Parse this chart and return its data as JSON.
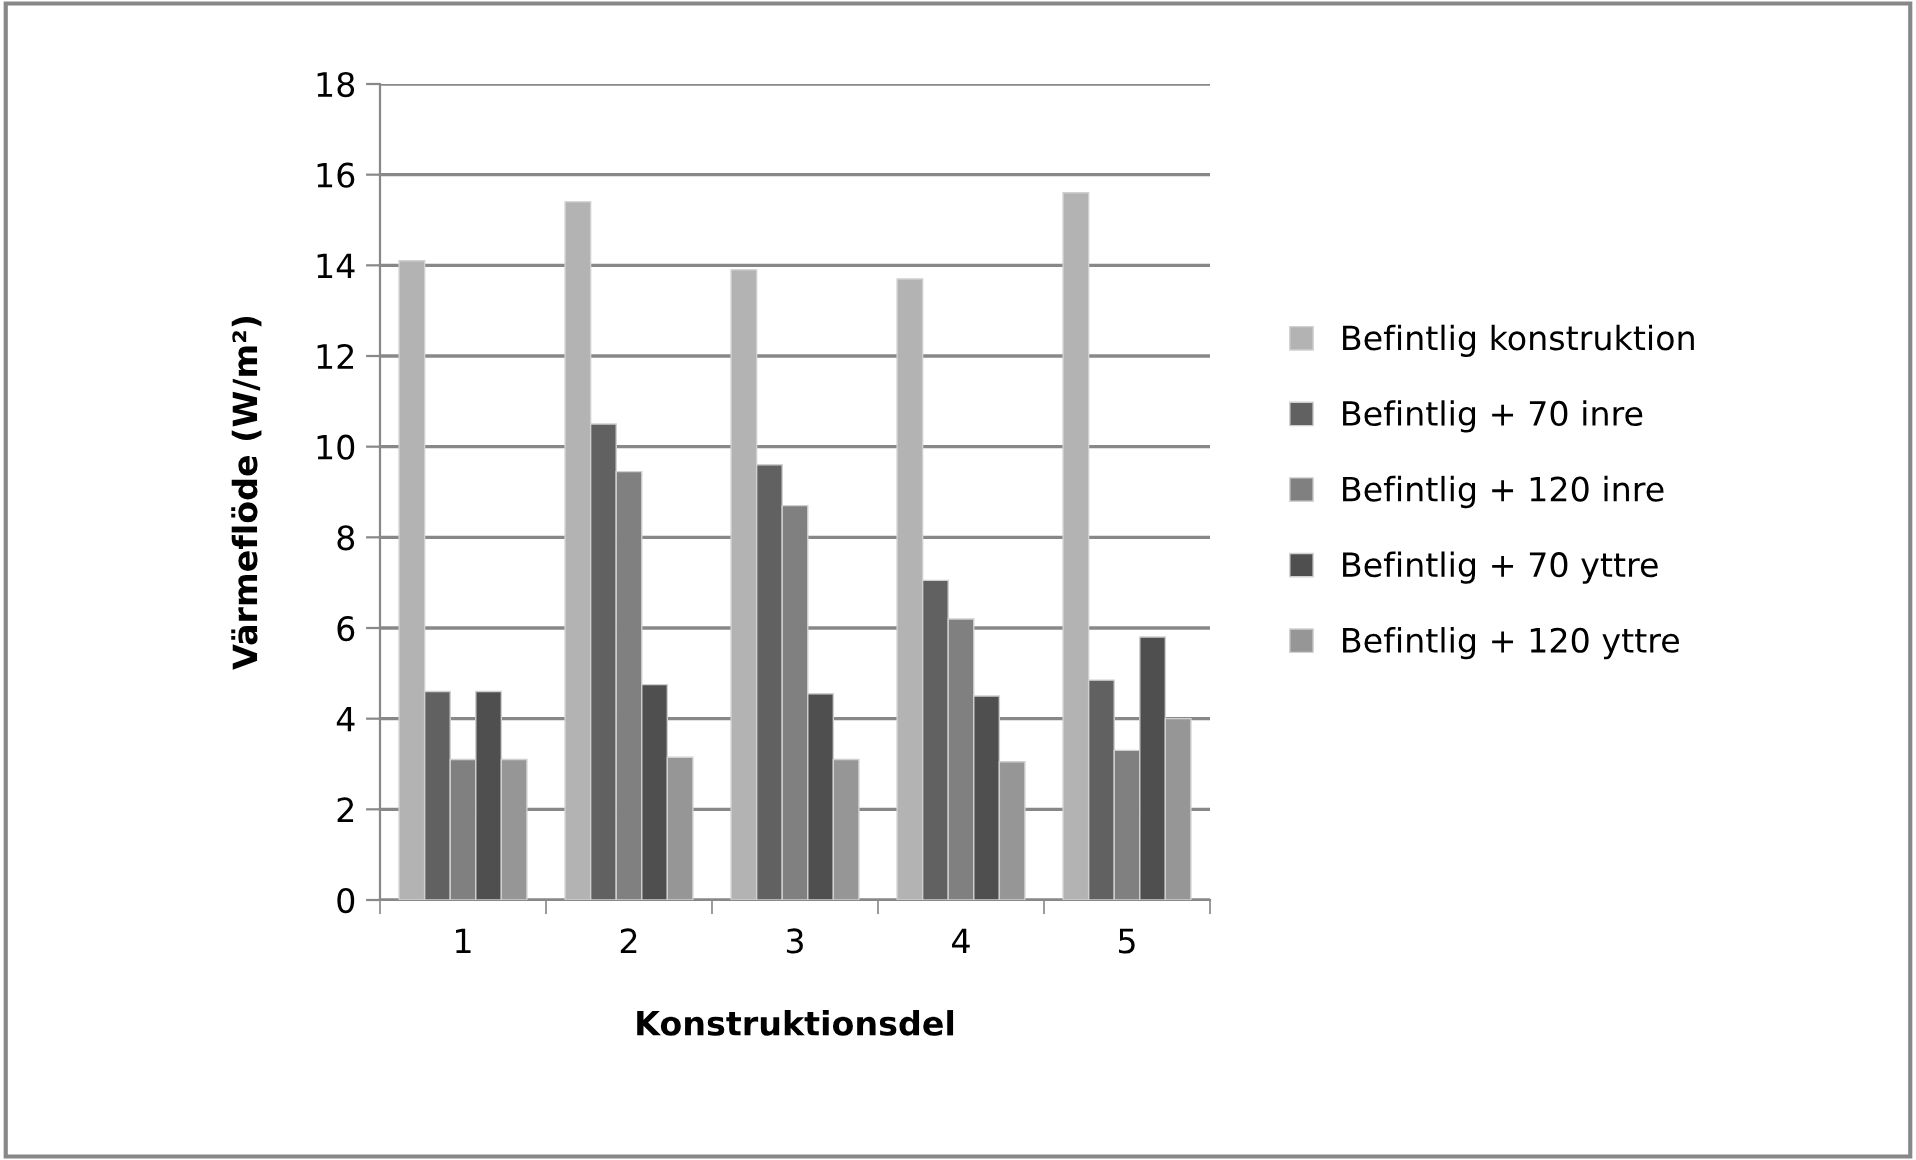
{
  "chart_data": {
    "type": "bar",
    "xlabel": "Konstruktionsdel",
    "ylabel": "Värmeflöde (W/m²)",
    "categories": [
      "1",
      "2",
      "3",
      "4",
      "5"
    ],
    "series": [
      {
        "name": "Befintlig konstruktion",
        "color": "#b3b3b3",
        "values": [
          14.1,
          15.4,
          13.9,
          13.7,
          15.6
        ]
      },
      {
        "name": "Befintlig + 70 inre",
        "color": "#616161",
        "values": [
          4.6,
          10.5,
          9.6,
          7.05,
          4.85
        ]
      },
      {
        "name": "Befintlig + 120 inre",
        "color": "#808080",
        "values": [
          3.1,
          9.45,
          8.7,
          6.2,
          3.3
        ]
      },
      {
        "name": "Befintlig + 70 yttre",
        "color": "#4f4f4f",
        "values": [
          4.6,
          4.75,
          4.55,
          4.5,
          5.8
        ]
      },
      {
        "name": "Befintlig + 120 yttre",
        "color": "#969696",
        "values": [
          3.1,
          3.15,
          3.1,
          3.05,
          4.0
        ]
      }
    ],
    "ylim": [
      0,
      18
    ],
    "yticks": [
      0,
      2,
      4,
      6,
      8,
      10,
      12,
      14,
      16,
      18
    ],
    "grid": "y",
    "legend": "right"
  }
}
